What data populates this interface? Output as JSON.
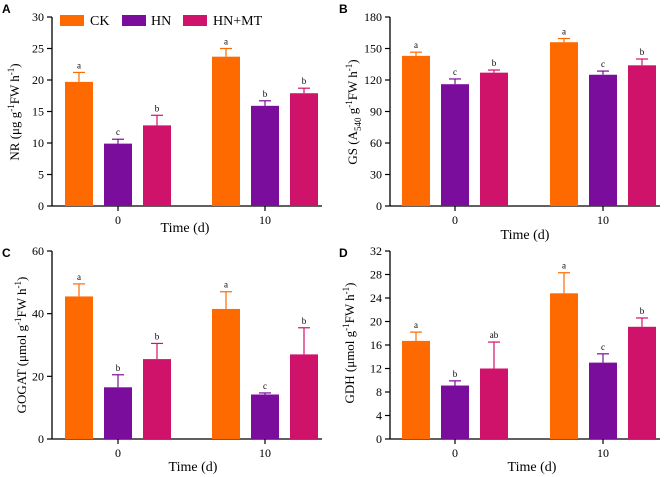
{
  "colors": {
    "CK": "#ff6a00",
    "HN": "#7b0d9c",
    "HN+MT": "#d0136a"
  },
  "legend": [
    "CK",
    "HN",
    "HN+MT"
  ],
  "chart_data": [
    {
      "panel": "A",
      "type": "bar",
      "ylabel_main": "NR (μg g",
      "ylabel_sup1": "-1",
      "ylabel_mid": "FW h",
      "ylabel_sup2": "-1",
      "ylabel_end": ")",
      "xlabel": "Time (d)",
      "categories": [
        "0",
        "10"
      ],
      "ylim": [
        0,
        30
      ],
      "yticks": [
        0,
        5,
        10,
        15,
        20,
        25,
        30
      ],
      "series": [
        {
          "name": "CK",
          "values": [
            19.7,
            23.7
          ],
          "errors": [
            1.5,
            1.3
          ],
          "letters": [
            "a",
            "a"
          ]
        },
        {
          "name": "HN",
          "values": [
            9.9,
            15.9
          ],
          "errors": [
            0.7,
            0.8
          ],
          "letters": [
            "c",
            "b"
          ]
        },
        {
          "name": "HN+MT",
          "values": [
            12.8,
            17.9
          ],
          "errors": [
            1.6,
            0.8
          ],
          "letters": [
            "b",
            "b"
          ]
        }
      ]
    },
    {
      "panel": "B",
      "type": "bar",
      "ylabel_main": "GS (A",
      "ylabel_sub": "540",
      "ylabel_mid": " g",
      "ylabel_sup1": "-1",
      "ylabel_mid2": "FW h",
      "ylabel_sup2": "-1",
      "ylabel_end": ")",
      "xlabel": "Time (d)",
      "categories": [
        "0",
        "10"
      ],
      "ylim": [
        0,
        180
      ],
      "yticks": [
        0,
        30,
        60,
        90,
        120,
        150,
        180
      ],
      "series": [
        {
          "name": "CK",
          "values": [
            143,
            156
          ],
          "errors": [
            3.5,
            3.5
          ],
          "letters": [
            "a",
            "a"
          ]
        },
        {
          "name": "HN",
          "values": [
            116,
            125
          ],
          "errors": [
            5,
            3.5
          ],
          "letters": [
            "c",
            "c"
          ]
        },
        {
          "name": "HN+MT",
          "values": [
            127,
            134
          ],
          "errors": [
            2.5,
            6
          ],
          "letters": [
            "b",
            "b"
          ]
        }
      ]
    },
    {
      "panel": "C",
      "type": "bar",
      "ylabel_main": "GOGAT (μmol g",
      "ylabel_sup1": "-1",
      "ylabel_mid": "FW h",
      "ylabel_sup2": "-1",
      "ylabel_end": ")",
      "xlabel": "Time (d)",
      "categories": [
        "0",
        "10"
      ],
      "ylim": [
        0,
        60
      ],
      "yticks": [
        0,
        20,
        40,
        60
      ],
      "series": [
        {
          "name": "CK",
          "values": [
            45.5,
            41.5
          ],
          "errors": [
            4,
            5.5
          ],
          "letters": [
            "a",
            "a"
          ]
        },
        {
          "name": "HN",
          "values": [
            16.5,
            14.2
          ],
          "errors": [
            4,
            0.5
          ],
          "letters": [
            "b",
            "c"
          ]
        },
        {
          "name": "HN+MT",
          "values": [
            25.5,
            27
          ],
          "errors": [
            5,
            8.5
          ],
          "letters": [
            "b",
            "b"
          ]
        }
      ]
    },
    {
      "panel": "D",
      "type": "bar",
      "ylabel_main": "GDH (μmol g",
      "ylabel_sup1": "-1",
      "ylabel_mid": "FW h",
      "ylabel_sup2": "-1",
      "ylabel_end": ")",
      "xlabel": "Time (d)",
      "categories": [
        "0",
        "10"
      ],
      "ylim": [
        0,
        32
      ],
      "yticks": [
        0,
        4,
        8,
        12,
        16,
        20,
        24,
        28,
        32
      ],
      "series": [
        {
          "name": "CK",
          "values": [
            16.7,
            24.8
          ],
          "errors": [
            1.5,
            3.5
          ],
          "letters": [
            "a",
            "a"
          ]
        },
        {
          "name": "HN",
          "values": [
            9.1,
            13
          ],
          "errors": [
            0.8,
            1.5
          ],
          "letters": [
            "b",
            "c"
          ]
        },
        {
          "name": "HN+MT",
          "values": [
            12,
            19.1
          ],
          "errors": [
            4.5,
            1.5
          ],
          "letters": [
            "ab",
            "b"
          ]
        }
      ]
    }
  ]
}
